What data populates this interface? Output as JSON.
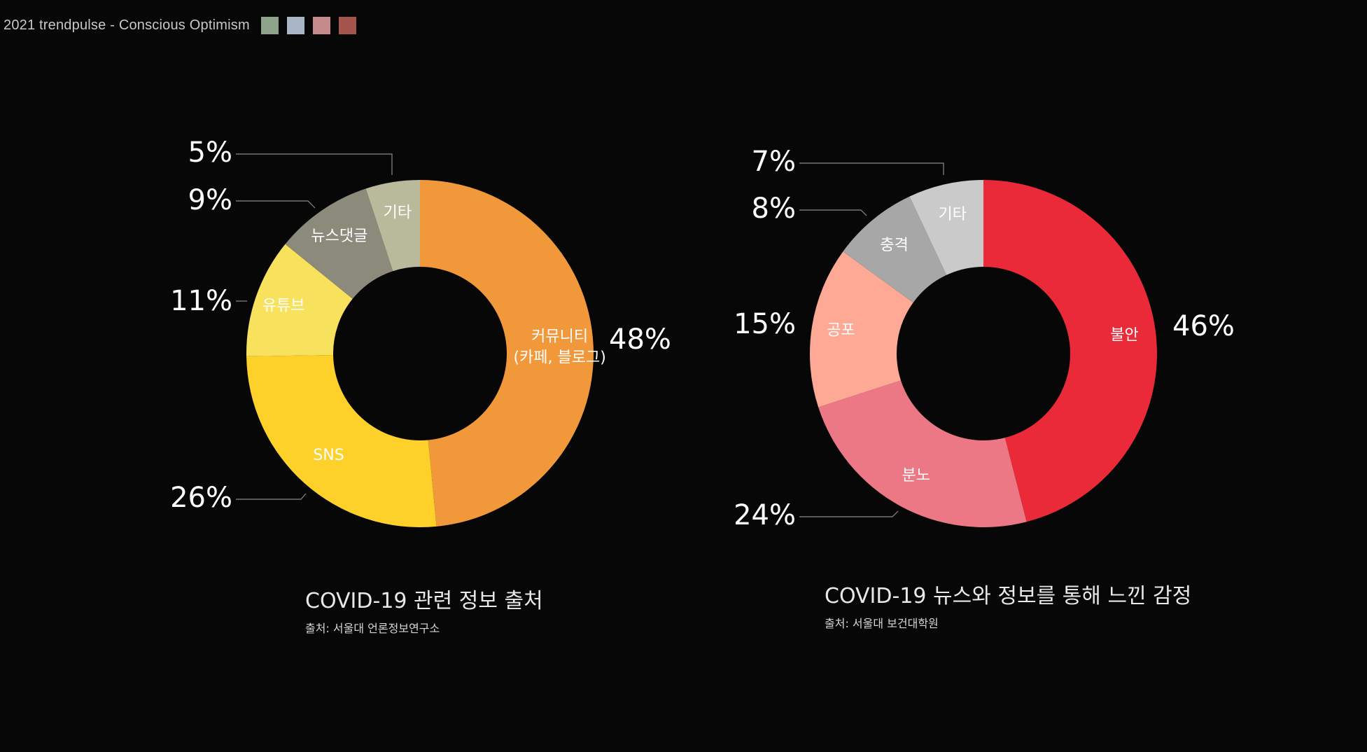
{
  "header": {
    "title": "2021 trendpulse - Conscious Optimism",
    "swatches": [
      {
        "name": "swatch-green",
        "color": "#8da48a"
      },
      {
        "name": "swatch-blue",
        "color": "#a9b6c6"
      },
      {
        "name": "swatch-pink",
        "color": "#c48a8c"
      },
      {
        "name": "swatch-red",
        "color": "#a6544e"
      }
    ]
  },
  "chart_data": [
    {
      "type": "pie",
      "title": "COVID-19 관련 정보 출처",
      "source": "출처: 서울대 언론정보연구소",
      "donut": true,
      "categories": [
        "커뮤니티 (카페, 블로그)",
        "SNS",
        "유튜브",
        "뉴스댓글",
        "기타"
      ],
      "values": [
        48,
        26,
        11,
        9,
        5
      ],
      "value_labels": [
        "48%",
        "26%",
        "11%",
        "9%",
        "5%"
      ],
      "slice_labels": [
        [
          "커뮤니티",
          "(카페, 블로그)"
        ],
        [
          "SNS"
        ],
        [
          "유튜브"
        ],
        [
          "뉴스댓글"
        ],
        [
          "기타"
        ]
      ],
      "colors": [
        "#f0983a",
        "#fdd12a",
        "#f8e15c",
        "#8c8a7a",
        "#b9b99b"
      ]
    },
    {
      "type": "pie",
      "title": "COVID-19 뉴스와 정보를 통해 느낀 감정",
      "source": "출처: 서울대 보건대학원",
      "donut": true,
      "categories": [
        "불안",
        "분노",
        "공포",
        "충격",
        "기타"
      ],
      "values": [
        46,
        24,
        15,
        8,
        7
      ],
      "value_labels": [
        "46%",
        "24%",
        "15%",
        "8%",
        "7%"
      ],
      "slice_labels": [
        [
          "불안"
        ],
        [
          "분노"
        ],
        [
          "공포"
        ],
        [
          "충격"
        ],
        [
          "기타"
        ]
      ],
      "colors": [
        "#ea2a38",
        "#ec7785",
        "#fea995",
        "#a7a7a7",
        "#cacaca"
      ]
    }
  ]
}
